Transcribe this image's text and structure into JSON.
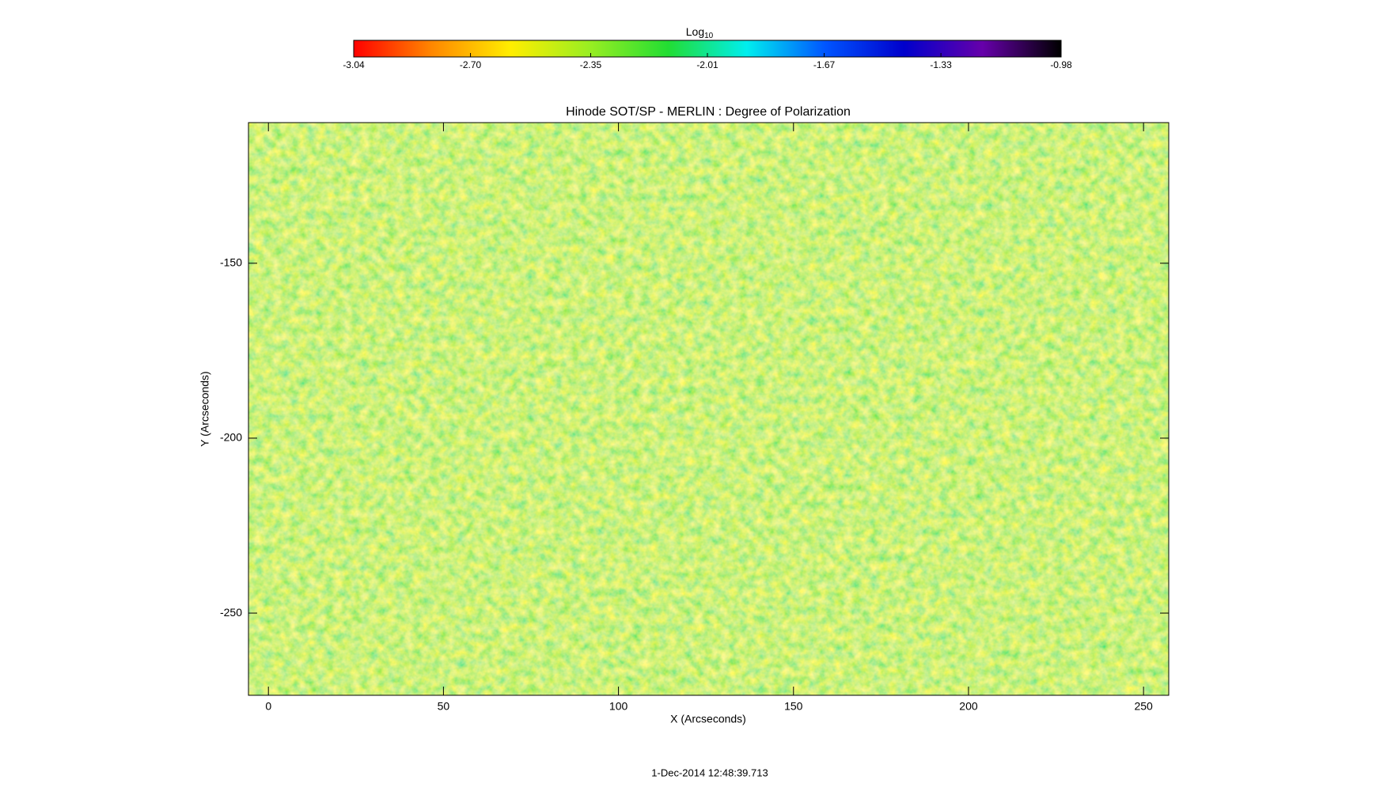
{
  "chart_data": {
    "type": "heatmap",
    "title": "Hinode SOT/SP - MERLIN : Degree of Polarization",
    "x_label": "X (Arcseconds)",
    "y_label": "Y (Arcseconds)",
    "xlim": [
      -5.7,
      257.2
    ],
    "xticks": [
      0,
      50,
      100,
      150,
      200,
      250
    ],
    "ylim": [
      -273.5,
      -109.8
    ],
    "yticks": [
      -150,
      -200,
      -250
    ],
    "colorbar_label": "Log",
    "colorbar_label_subscript": "10",
    "clim": [
      -3.04,
      -0.98
    ],
    "cticks": [
      -3.04,
      {
        "value": -2.7,
        "label": "-2.70"
      },
      -2.35,
      -2.01,
      -1.67,
      -1.33,
      -0.98
    ],
    "colormap": [
      "#ff0000",
      "#ff8800",
      "#ffee00",
      "#99ee22",
      "#22dd33",
      "#00eeee",
      "#0055ff",
      "#0000cc",
      "#6600aa",
      "#000000"
    ],
    "timestamp": "1-Dec-2014 12:48:39.713"
  }
}
